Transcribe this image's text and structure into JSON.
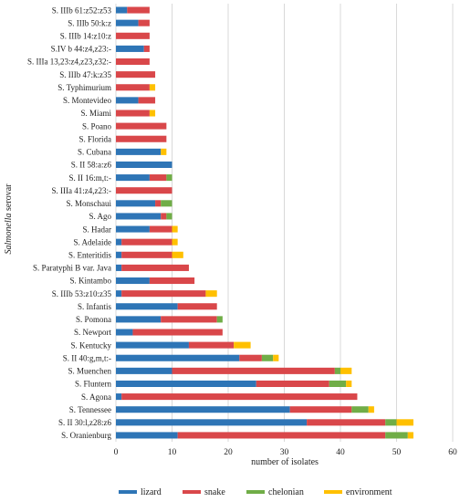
{
  "chart_data": {
    "type": "bar",
    "orientation": "horizontal",
    "stacked": true,
    "title": "",
    "xlabel": "number of isolates",
    "ylabel_italic": "Salmonella",
    "ylabel_rest": " serovar",
    "xlim": [
      0,
      60
    ],
    "x_ticks": [
      0,
      10,
      20,
      30,
      40,
      50,
      60
    ],
    "grid": "vertical",
    "legend_position": "bottom",
    "categories": [
      "S. Oranienburg",
      "S. II 30:l,z28:z6",
      "S. Tennessee",
      "S. Agona",
      "S. Fluntern",
      "S. Muenchen",
      "S. II 40:g,m,t:-",
      "S. Kentucky",
      "S. Newport",
      "S. Pomona",
      "S. Infantis",
      "S. IIIb 53:z10:z35",
      "S. Kintambo",
      "S. Paratyphi B var. Java",
      "S. Enteritidis",
      "S. Adelaide",
      "S. Hadar",
      "S. Ago",
      "S. Monschaui",
      "S. IIIa 41:z4,z23:-",
      "S. II 16:m,t:-",
      "S. II 58:a:z6",
      "S. Cubana",
      "S. Florida",
      "S. Poano",
      "S. Miami",
      "S. Montevideo",
      "S. Typhimurium",
      "S. IIIb 47:k:z35",
      "S. IIIa 13,23:z4,z23,z32:-",
      "S.IV b 44:z4,z23:-",
      "S. IIIb 14:z10:z",
      "S. IIIb 50:k:z",
      "S. IIIb 61:z52:z53"
    ],
    "series": [
      {
        "name": "lizard",
        "color": "#2e75b6",
        "values": [
          11,
          34,
          31,
          1,
          25,
          10,
          22,
          13,
          3,
          8,
          11,
          1,
          6,
          1,
          1,
          1,
          6,
          8,
          7,
          0,
          6,
          10,
          8,
          0,
          0,
          0,
          4,
          0,
          0,
          0,
          5,
          0,
          4,
          2
        ]
      },
      {
        "name": "snake",
        "color": "#d9474a",
        "values": [
          37,
          14,
          11,
          42,
          13,
          29,
          4,
          8,
          16,
          10,
          7,
          15,
          8,
          12,
          9,
          9,
          4,
          1,
          1,
          10,
          3,
          0,
          0,
          9,
          9,
          6,
          3,
          6,
          7,
          6,
          1,
          6,
          2,
          4
        ]
      },
      {
        "name": "chelonian",
        "color": "#70ad47",
        "values": [
          4,
          2,
          3,
          0,
          3,
          1,
          2,
          0,
          0,
          1,
          0,
          0,
          0,
          0,
          0,
          0,
          0,
          1,
          2,
          0,
          1,
          0,
          0,
          0,
          0,
          0,
          0,
          0,
          0,
          0,
          0,
          0,
          0,
          0
        ]
      },
      {
        "name": "environment",
        "color": "#ffc000",
        "values": [
          1,
          3,
          1,
          0,
          1,
          2,
          1,
          3,
          0,
          0,
          0,
          2,
          0,
          0,
          2,
          1,
          1,
          0,
          0,
          0,
          0,
          0,
          1,
          0,
          0,
          1,
          0,
          1,
          0,
          0,
          0,
          0,
          0,
          0
        ]
      }
    ]
  }
}
